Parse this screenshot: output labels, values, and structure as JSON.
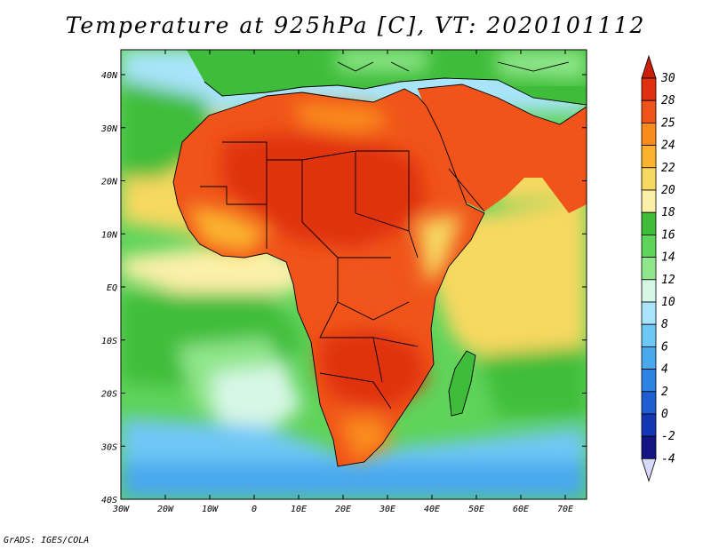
{
  "title": "Temperature at 925hPa [C], VT: 2020101112",
  "credit": "GrADS: IGES/COLA",
  "map": {
    "region": "Africa",
    "variable": "Temperature at 925hPa",
    "units": "C",
    "valid_time": "2020101112",
    "lon_range": [
      -30,
      75
    ],
    "lat_range": [
      -40,
      45
    ],
    "lon_ticks": [
      "30W",
      "20W",
      "10W",
      "0",
      "10E",
      "20E",
      "30E",
      "40E",
      "50E",
      "60E",
      "70E"
    ],
    "lat_ticks": [
      "40N",
      "30N",
      "20N",
      "10N",
      "EQ",
      "10S",
      "20S",
      "30S",
      "40S"
    ]
  },
  "colorbar": {
    "levels": [
      "30",
      "28",
      "25",
      "24",
      "22",
      "20",
      "18",
      "16",
      "14",
      "12",
      "10",
      "8",
      "6",
      "4",
      "2",
      "0",
      "-2",
      "-4"
    ],
    "colors": [
      "#e0300f",
      "#f0541a",
      "#fa8c1e",
      "#fbb32f",
      "#f7d860",
      "#fcf0a8",
      "#3fbd3a",
      "#5fd35a",
      "#90e68a",
      "#d7f7e6",
      "#a9e4fa",
      "#6fc7f6",
      "#4aa8ee",
      "#2c84e2",
      "#1e5dd2",
      "#1436b4",
      "#121582"
    ],
    "top_arrow_color": "#c81e0a",
    "bottom_arrow_color": "#d8d8fa"
  }
}
